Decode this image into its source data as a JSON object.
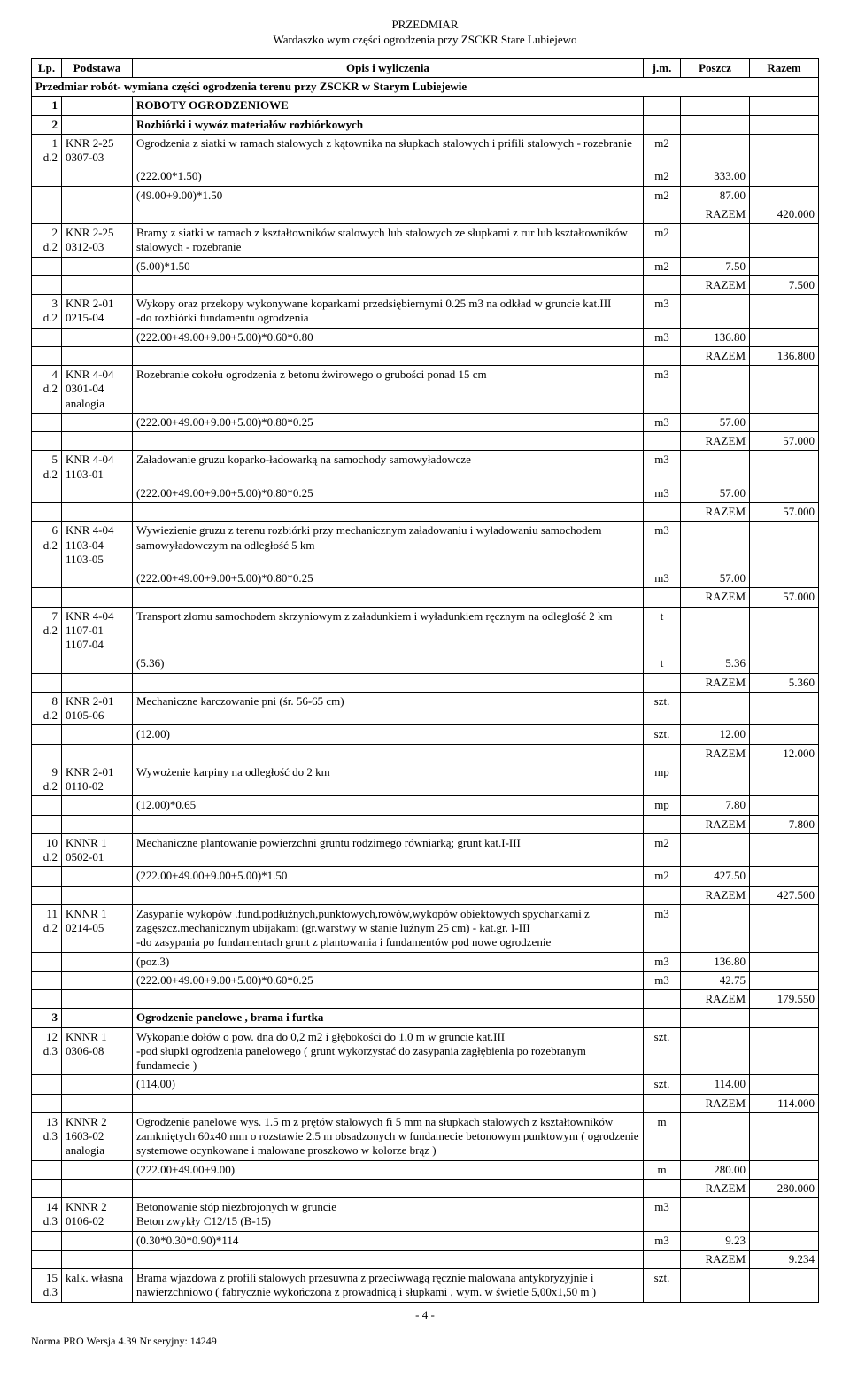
{
  "header": {
    "title1": "PRZEDMIAR",
    "title2": "Wardaszko wym części ogrodzenia  przy ZSCKR Stare Lubiejewo"
  },
  "columns": {
    "lp": "Lp.",
    "podstawa": "Podstawa",
    "opis": "Opis i wyliczenia",
    "jm": "j.m.",
    "poszcz": "Poszcz",
    "razem": "Razem"
  },
  "intro": "Przedmiar robót- wymiana części ogrodzenia terenu przy ZSCKR w Starym Lubiejewie",
  "section1": {
    "num": "1",
    "title": "ROBOTY OGRODZENIOWE"
  },
  "section2": {
    "num": "2",
    "title": "Rozbiórki i wywóz materiałów rozbiórkowych"
  },
  "row1": {
    "lp": "1",
    "pod": "KNR 2-25 0307-03",
    "dz": "d.2",
    "opis": "Ogrodzenia z siatki  w ramach stalowych z kątownika na słupkach stalowych  i prifili stalowych  - rozebranie",
    "jm": "m2",
    "lines": [
      {
        "expr": "(222.00*1.50)",
        "jm": "m2",
        "val": "333.00"
      },
      {
        "expr": "(49.00+9.00)*1.50",
        "jm": "m2",
        "val": "87.00"
      }
    ],
    "razem_label": "RAZEM",
    "razem": "420.000"
  },
  "row2": {
    "lp": "2",
    "pod": "KNR 2-25 0312-03",
    "dz": "d.2",
    "opis": "Bramy z siatki w ramach z kształtowników stalowych  lub stalowych ze słupkami z rur lub kształtowników stalowych - rozebranie",
    "jm": "m2",
    "lines": [
      {
        "expr": "(5.00)*1.50",
        "jm": "m2",
        "val": "7.50"
      }
    ],
    "razem_label": "RAZEM",
    "razem": "7.500"
  },
  "row3": {
    "lp": "3",
    "pod": "KNR 2-01 0215-04",
    "dz": "d.2",
    "opis": "Wykopy oraz przekopy wykonywane koparkami przedsiębiernymi 0.25 m3 na odkład w gruncie kat.III\n-do rozbiórki fundamentu ogrodzenia",
    "jm": "m3",
    "lines": [
      {
        "expr": "(222.00+49.00+9.00+5.00)*0.60*0.80",
        "jm": "m3",
        "val": "136.80"
      }
    ],
    "razem_label": "RAZEM",
    "razem": "136.800"
  },
  "row4": {
    "lp": "4",
    "pod": "KNR 4-04 0301-04 analogia",
    "dz": "d.2",
    "opis": "Rozebranie cokołu ogrodzenia  z betonu żwirowego o grubości ponad 15 cm",
    "jm": "m3",
    "lines": [
      {
        "expr": "(222.00+49.00+9.00+5.00)*0.80*0.25",
        "jm": "m3",
        "val": "57.00"
      }
    ],
    "razem_label": "RAZEM",
    "razem": "57.000"
  },
  "row5": {
    "lp": "5",
    "pod": "KNR 4-04 1103-01",
    "dz": "d.2",
    "opis": "Załadowanie gruzu koparko-ładowarką na  samochody samowyładowcze",
    "jm": "m3",
    "lines": [
      {
        "expr": "(222.00+49.00+9.00+5.00)*0.80*0.25",
        "jm": "m3",
        "val": "57.00"
      }
    ],
    "razem_label": "RAZEM",
    "razem": "57.000"
  },
  "row6": {
    "lp": "6",
    "pod": "KNR 4-04 1103-04 1103-05",
    "dz": "d.2",
    "opis": "Wywiezienie gruzu z terenu rozbiórki przy mechanicznym załadowaniu i wyładowaniu samochodem samowyładowczym na odległość 5 km",
    "jm": "m3",
    "lines": [
      {
        "expr": "(222.00+49.00+9.00+5.00)*0.80*0.25",
        "jm": "m3",
        "val": "57.00"
      }
    ],
    "razem_label": "RAZEM",
    "razem": "57.000"
  },
  "row7": {
    "lp": "7",
    "pod": "KNR 4-04 1107-01 1107-04",
    "dz": "d.2",
    "opis": "Transport złomu samochodem skrzyniowym z załadunkiem i wyładunkiem ręcznym na odległość 2 km",
    "jm": "t",
    "lines": [
      {
        "expr": "(5.36)",
        "jm": "t",
        "val": "5.36"
      }
    ],
    "razem_label": "RAZEM",
    "razem": "5.360"
  },
  "row8": {
    "lp": "8",
    "pod": "KNR 2-01 0105-06",
    "dz": "d.2",
    "opis": "Mechaniczne karczowanie pni (śr. 56-65 cm)",
    "jm": "szt.",
    "lines": [
      {
        "expr": "(12.00)",
        "jm": "szt.",
        "val": "12.00"
      }
    ],
    "razem_label": "RAZEM",
    "razem": "12.000"
  },
  "row9": {
    "lp": "9",
    "pod": "KNR 2-01 0110-02",
    "dz": "d.2",
    "opis": "Wywożenie karpiny na odległość do 2 km",
    "jm": "mp",
    "lines": [
      {
        "expr": "(12.00)*0.65",
        "jm": "mp",
        "val": "7.80"
      }
    ],
    "razem_label": "RAZEM",
    "razem": "7.800"
  },
  "row10": {
    "lp": "10",
    "pod": "KNNR 1 0502-01",
    "dz": "d.2",
    "opis": "Mechaniczne plantowanie powierzchni gruntu rodzimego równiarką; grunt kat.I-III",
    "jm": "m2",
    "lines": [
      {
        "expr": "(222.00+49.00+9.00+5.00)*1.50",
        "jm": "m2",
        "val": "427.50"
      }
    ],
    "razem_label": "RAZEM",
    "razem": "427.500"
  },
  "row11": {
    "lp": "11",
    "pod": "KNNR 1 0214-05",
    "dz": "d.2",
    "opis": "Zasypanie wykopów .fund.podłużnych,punktowych,rowów,wykopów obiektowych spycharkami z zagęszcz.mechanicznym ubijakami (gr.warstwy w stanie luźnym 25 cm) - kat.gr. I-III\n-do zasypania po fundamentach grunt z plantowania i fundamentów pod nowe ogrodzenie",
    "jm": "m3",
    "lines": [
      {
        "expr": "(poz.3)",
        "jm": "m3",
        "val": "136.80"
      },
      {
        "expr": "(222.00+49.00+9.00+5.00)*0.60*0.25",
        "jm": "m3",
        "val": "42.75"
      }
    ],
    "razem_label": "RAZEM",
    "razem": "179.550"
  },
  "section3": {
    "num": "3",
    "title": "Ogrodzenie panelowe , brama i furtka"
  },
  "row12": {
    "lp": "12",
    "pod": "KNNR 1 0306-08",
    "dz": "d.3",
    "opis": "Wykopanie dołów o pow. dna do 0,2 m2 i głębokości do 1,0 m w gruncie kat.III\n-pod słupki ogrodzenia panelowego ( grunt wykorzystać do zasypania zagłębienia po rozebranym fundamecie )",
    "jm": "szt.",
    "lines": [
      {
        "expr": "(114.00)",
        "jm": "szt.",
        "val": "114.00"
      }
    ],
    "razem_label": "RAZEM",
    "razem": "114.000"
  },
  "row13": {
    "lp": "13",
    "pod": "KNNR 2 1603-02 analogia",
    "dz": "d.3",
    "opis": "Ogrodzenie panelowe  wys. 1.5 m z prętów stalowych fi 5 mm na słupkach stalowych z kształtowników zamkniętych 60x40 mm o rozstawie 2.5 m obsadzonych w fundamecie betonowym punktowym ( ogrodzenie systemowe ocynkowane i malowane proszkowo w kolorze brąz )",
    "jm": "m",
    "lines": [
      {
        "expr": "(222.00+49.00+9.00)",
        "jm": "m",
        "val": "280.00"
      }
    ],
    "razem_label": "RAZEM",
    "razem": "280.000"
  },
  "row14": {
    "lp": "14",
    "pod": "KNNR 2 0106-02",
    "dz": "d.3",
    "opis": "Betonowanie stóp  niezbrojonych w  gruncie\nBeton zwykły C12/15 (B-15)",
    "jm": "m3",
    "lines": [
      {
        "expr": "(0.30*0.30*0.90)*114",
        "jm": "m3",
        "val": "9.23"
      }
    ],
    "razem_label": "RAZEM",
    "razem": "9.234"
  },
  "row15": {
    "lp": "15",
    "pod": "kalk. własna",
    "dz": "d.3",
    "opis": "Brama wjazdowa z profili stalowych przesuwna z przeciwwagą ręcznie malowana antykoryzyjnie i nawierzchniowo ( fabrycznie wykończona z prowadnicą i słupkami , wym. w świetle 5,00x1,50 m )",
    "jm": "szt."
  },
  "footer": {
    "norma": "Norma PRO Wersja 4.39 Nr seryjny: 14249",
    "page": "- 4 -"
  }
}
